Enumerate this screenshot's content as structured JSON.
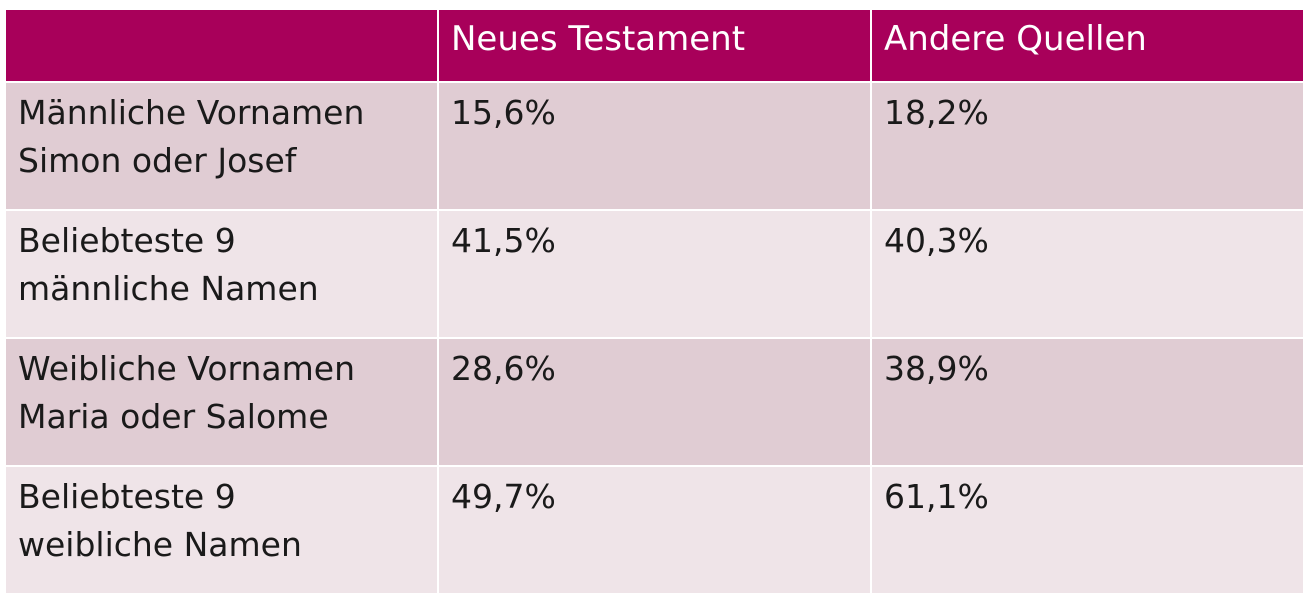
{
  "chart_data": {
    "type": "table",
    "colors": {
      "header_background": "#a8005a",
      "header_text": "#ffffff",
      "row_odd": "#e0ccd3",
      "row_even": "#efe4e8",
      "body_text": "#1a1a1a"
    },
    "columns": [
      "",
      "Neues Testament",
      "Andere Quellen"
    ],
    "rows": [
      {
        "label_lines": [
          "Männliche Vornamen",
          "Simon oder Josef"
        ],
        "values": [
          "15,6%",
          "18,2%"
        ]
      },
      {
        "label_lines": [
          "Beliebteste 9",
          "männliche Namen"
        ],
        "values": [
          "41,5%",
          "40,3%"
        ]
      },
      {
        "label_lines": [
          "Weibliche Vornamen",
          "Maria oder Salome"
        ],
        "values": [
          "28,6%",
          "38,9%"
        ]
      },
      {
        "label_lines": [
          "Beliebteste 9",
          "weibliche Namen"
        ],
        "values": [
          "49,7%",
          "61,1%"
        ]
      }
    ]
  }
}
